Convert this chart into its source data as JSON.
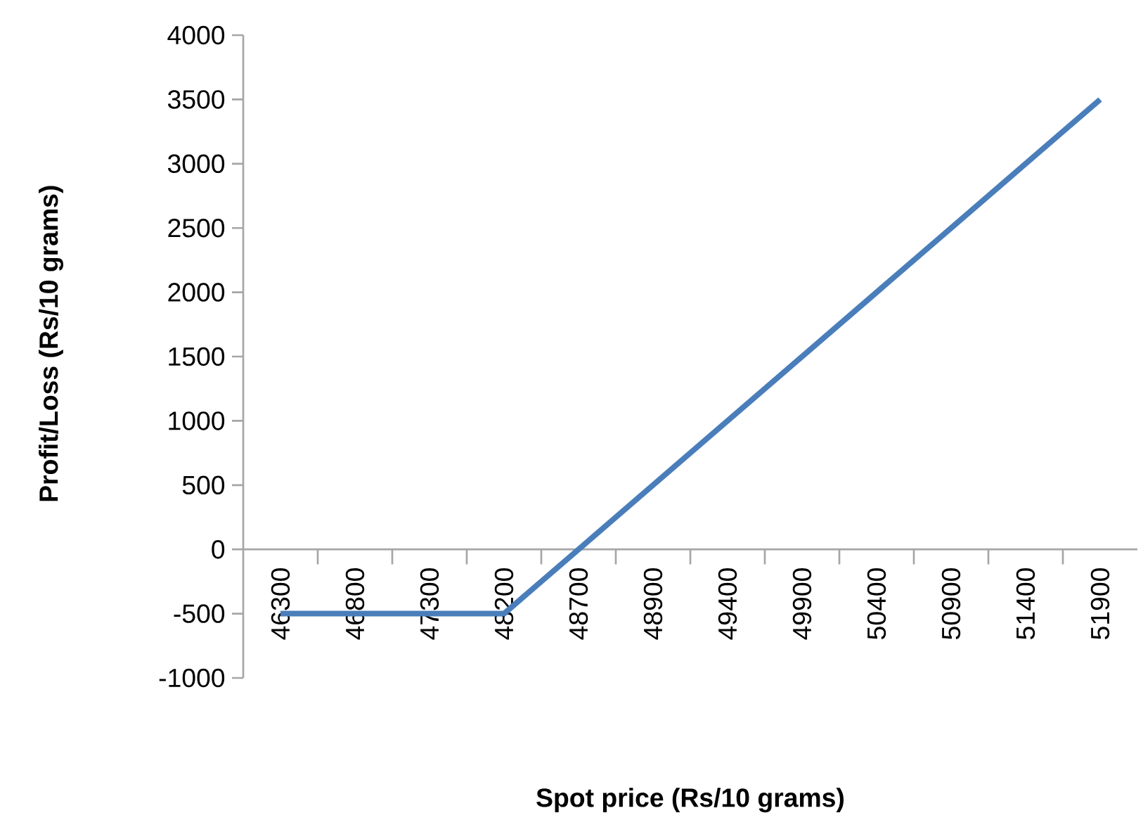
{
  "chart_data": {
    "type": "line",
    "xlabel": "Spot price  (Rs/10 grams)",
    "ylabel": "Profit/Loss (Rs/10  grams)",
    "categories": [
      "46300",
      "46800",
      "47300",
      "48200",
      "48700",
      "48900",
      "49400",
      "49900",
      "50400",
      "50900",
      "51400",
      "51900"
    ],
    "values": [
      -500,
      -500,
      -500,
      -500,
      0,
      500,
      1000,
      1500,
      2000,
      2500,
      3000,
      3500
    ],
    "color": "#4a7ebb",
    "ylim": [
      -1000,
      4000
    ],
    "yticks": [
      -1000,
      -500,
      0,
      500,
      1000,
      1500,
      2000,
      2500,
      3000,
      3500,
      4000
    ]
  }
}
